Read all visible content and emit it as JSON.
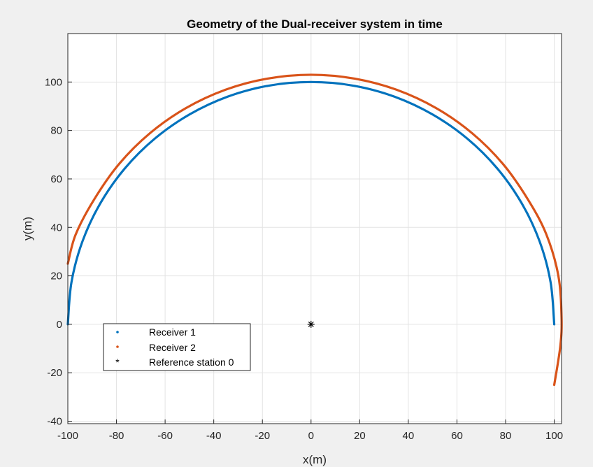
{
  "chart_data": {
    "type": "line",
    "title": "Geometry of the Dual-receiver system in time",
    "xlabel": "x(m)",
    "ylabel": "y(m)",
    "xlim": [
      -100,
      103
    ],
    "ylim": [
      -41,
      120
    ],
    "x_ticks": [
      -100,
      -80,
      -60,
      -40,
      -20,
      0,
      20,
      40,
      60,
      80,
      100
    ],
    "y_ticks": [
      -40,
      -20,
      0,
      20,
      40,
      60,
      80,
      100
    ],
    "grid": true,
    "legend_position": "lower-left",
    "series": [
      {
        "name": "Receiver 1",
        "color": "#0072BD",
        "marker": "dot",
        "points": [
          [
            100,
            0
          ],
          [
            98.5,
            17.4
          ],
          [
            94.0,
            34.2
          ],
          [
            86.6,
            50.0
          ],
          [
            76.6,
            64.3
          ],
          [
            64.3,
            76.6
          ],
          [
            50.0,
            86.6
          ],
          [
            34.2,
            94.0
          ],
          [
            17.4,
            98.5
          ],
          [
            0,
            100
          ],
          [
            -17.4,
            98.5
          ],
          [
            -34.2,
            94.0
          ],
          [
            -50.0,
            86.6
          ],
          [
            -64.3,
            76.6
          ],
          [
            -76.6,
            64.3
          ],
          [
            -86.6,
            50.0
          ],
          [
            -94.0,
            34.2
          ],
          [
            -98.5,
            17.4
          ],
          [
            -100,
            0
          ]
        ]
      },
      {
        "name": "Receiver 2",
        "color": "#D95319",
        "marker": "dot",
        "points": [
          [
            100,
            -25
          ],
          [
            102.5,
            -9
          ],
          [
            103,
            3
          ],
          [
            101.7,
            20
          ],
          [
            96.8,
            37
          ],
          [
            89.2,
            51.5
          ],
          [
            78.9,
            66.2
          ],
          [
            66.2,
            78.9
          ],
          [
            51.5,
            89.2
          ],
          [
            35.2,
            96.8
          ],
          [
            17.9,
            101.4
          ],
          [
            0,
            103
          ],
          [
            -17.9,
            101.4
          ],
          [
            -35.2,
            96.8
          ],
          [
            -51.5,
            89.2
          ],
          [
            -66.2,
            78.9
          ],
          [
            -78.9,
            66.2
          ],
          [
            -89.2,
            51.5
          ],
          [
            -96.8,
            37
          ],
          [
            -100,
            25
          ]
        ]
      },
      {
        "name": "Reference station 0",
        "color": "#000000",
        "marker": "asterisk",
        "points": [
          [
            0,
            0
          ]
        ]
      }
    ]
  }
}
